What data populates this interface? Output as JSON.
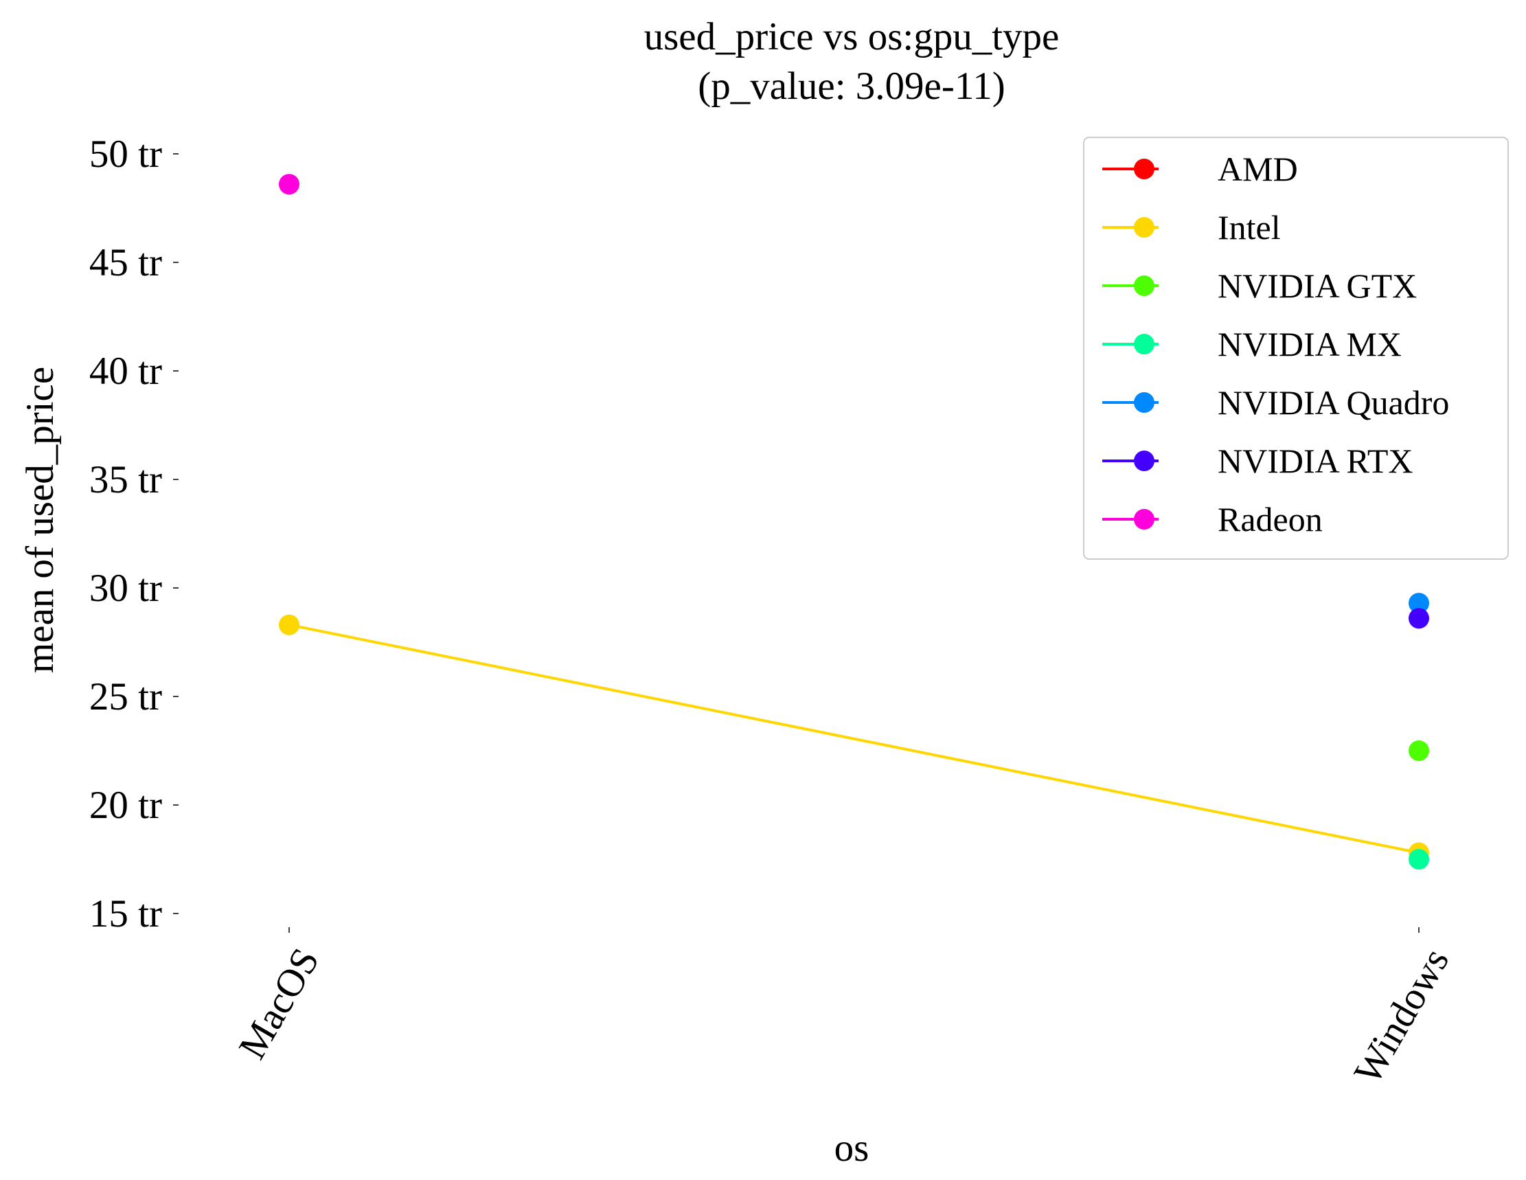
{
  "chart_data": {
    "type": "line",
    "title": "used_price vs os:gpu_type",
    "subtitle": "(p_value: 3.09e-11)",
    "xlabel": "os",
    "ylabel": "mean of used_price",
    "categories": [
      "MacOS",
      "Windows"
    ],
    "ylim": [
      14.2,
      50.3
    ],
    "yticks": [
      15,
      20,
      25,
      30,
      35,
      40,
      45,
      50
    ],
    "ytick_labels": [
      "15 tr",
      "20 tr",
      "25 tr",
      "30 tr",
      "35 tr",
      "40 tr",
      "45 tr",
      "50 tr"
    ],
    "grid": false,
    "legend_position": "top-right",
    "series": [
      {
        "name": "AMD",
        "color": "#ff0000",
        "values": [
          null,
          null
        ]
      },
      {
        "name": "Intel",
        "color": "#ffd700",
        "values": [
          28.3,
          17.8
        ]
      },
      {
        "name": "NVIDIA GTX",
        "color": "#4dff00",
        "values": [
          null,
          22.5
        ]
      },
      {
        "name": "NVIDIA MX",
        "color": "#00ff99",
        "values": [
          null,
          17.5
        ]
      },
      {
        "name": "NVIDIA Quadro",
        "color": "#0088ff",
        "values": [
          null,
          29.3
        ]
      },
      {
        "name": "NVIDIA RTX",
        "color": "#4400ff",
        "values": [
          null,
          28.6
        ]
      },
      {
        "name": "Radeon",
        "color": "#ff00dd",
        "values": [
          48.6,
          null
        ]
      }
    ]
  }
}
